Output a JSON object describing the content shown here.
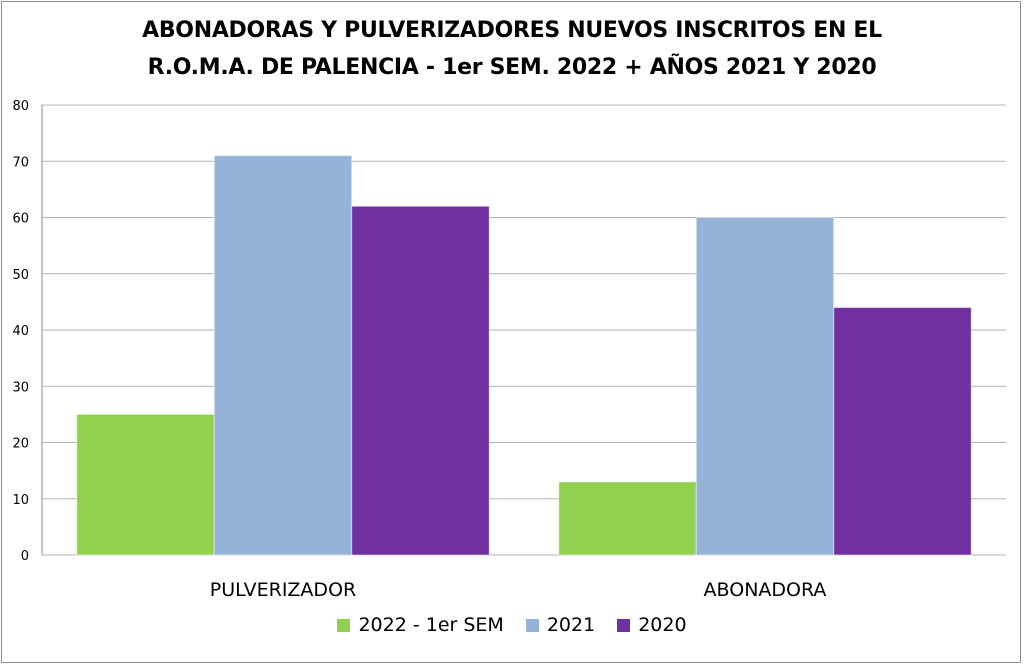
{
  "chart_data": {
    "type": "bar",
    "title_lines": [
      "ABONADORAS Y PULVERIZADORES NUEVOS INSCRITOS EN EL",
      "R.O.M.A. DE PALENCIA - 1er SEM. 2022 + AÑOS 2021 Y 2020"
    ],
    "categories": [
      "PULVERIZADOR",
      "ABONADORA"
    ],
    "series": [
      {
        "name": "2022 - 1er SEM",
        "color": "#92d050",
        "values": [
          25,
          13
        ]
      },
      {
        "name": "2021",
        "color": "#95b3d7",
        "values": [
          71,
          60
        ]
      },
      {
        "name": "2020",
        "color": "#7030a0",
        "values": [
          62,
          44
        ]
      }
    ],
    "ylim": [
      0,
      80
    ],
    "yticks": [
      0,
      10,
      20,
      30,
      40,
      50,
      60,
      70,
      80
    ],
    "xlabel": "",
    "ylabel": "",
    "grid": true,
    "legend_position": "bottom"
  }
}
